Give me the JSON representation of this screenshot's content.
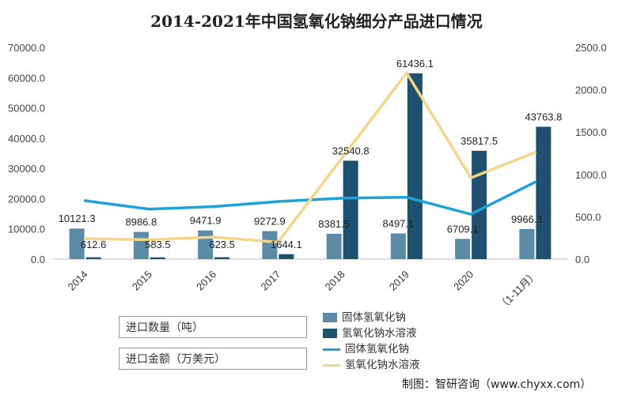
{
  "chart_data": {
    "type": "bar+line",
    "title": "2014-2021年中国氢氧化钠细分产品进口情况",
    "categories": [
      "2014",
      "2015",
      "2016",
      "2017",
      "2018",
      "2019",
      "2020",
      "2021 (1-11月)"
    ],
    "category_labels": [
      "2014",
      "2015",
      "2016",
      "2017",
      "2018",
      "2019",
      "2020",
      "（1-11月）"
    ],
    "left_axis": {
      "ylim": [
        0,
        70000
      ],
      "ticks": [
        "0.0",
        "10000.0",
        "20000.0",
        "30000.0",
        "40000.0",
        "50000.0",
        "60000.0",
        "70000.0"
      ]
    },
    "right_axis": {
      "ylim": [
        0,
        2500
      ],
      "ticks": [
        "0.0",
        "500.0",
        "1000.0",
        "1500.0",
        "2000.0",
        "2500.0"
      ]
    },
    "bar_series": [
      {
        "name": "固体氢氧化钠",
        "color": "#5b8ba6",
        "values": [
          10121.3,
          8986.8,
          9471.9,
          9272.9,
          8381.5,
          8497.1,
          6709.1,
          9966.3
        ],
        "labels": [
          "10121.3",
          "8986.8",
          "9471.9",
          "9272.9",
          "8381.5",
          "8497.1",
          "6709.1",
          "9966.3"
        ]
      },
      {
        "name": "氢氧化钠水溶液",
        "color": "#1e5070",
        "values": [
          612.6,
          583.5,
          623.5,
          1644.1,
          32540.8,
          61436.1,
          35817.5,
          43763.8
        ],
        "labels": [
          "612.6",
          "583.5",
          "623.5",
          "1644.1",
          "32540.8",
          "61436.1",
          "35817.5",
          "43763.8"
        ]
      }
    ],
    "line_series": [
      {
        "name": "固体氢氧化钠",
        "color": "#1fa1d9",
        "axis": "right",
        "values": [
          690,
          590,
          620,
          680,
          720,
          730,
          530,
          910
        ]
      },
      {
        "name": "氢氧化钠水溶液",
        "color": "#f5d58a",
        "axis": "right",
        "values": [
          240,
          230,
          260,
          200,
          1200,
          2200,
          960,
          1260
        ]
      }
    ],
    "grid": false,
    "legend_position": "bottom"
  },
  "axis_boxes": {
    "quantity": "进口数量（吨）",
    "amount": "进口金额（万美元）"
  },
  "legend": {
    "bar1": "固体氢氧化钠",
    "bar2": "氢氧化钠水溶液",
    "line1": "固体氢氧化钠",
    "line2": "氢氧化钠水溶液"
  },
  "source": "制图：智研咨询（www.chyxx.com）",
  "colors": {
    "bar1": "#5b8ba6",
    "bar2": "#1e5070",
    "line1": "#1fa1d9",
    "line2": "#f5d58a"
  }
}
